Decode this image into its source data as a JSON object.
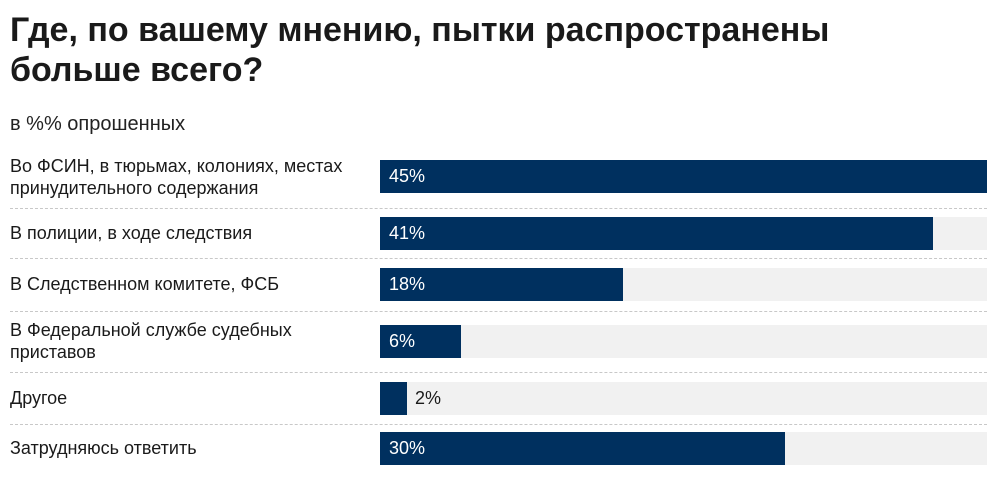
{
  "title": "Где, по вашему мнению, пытки распространены больше всего?",
  "subtitle": "в %% опрошенных",
  "colors": {
    "bar": "#00305f",
    "track": "#f1f1f1",
    "divider": "#c8c8c8"
  },
  "chart_data": {
    "type": "bar",
    "orientation": "horizontal",
    "title": "Где, по вашему мнению, пытки распространены больше всего?",
    "subtitle": "в %% опрошенных",
    "unit": "%",
    "xlim": [
      0,
      45
    ],
    "grid": false,
    "legend": "none",
    "categories": [
      "Во ФСИН, в тюрьмах, колониях, местах принудительного содержания",
      "В полиции, в ходе следствия",
      "В Следственном комитете, ФСБ",
      "В Федеральной службе судебных приставов",
      "Другое",
      "Затрудняюсь ответить"
    ],
    "values": [
      45,
      41,
      18,
      6,
      2,
      30
    ],
    "data_labels": [
      "45%",
      "41%",
      "18%",
      "6%",
      "2%",
      "30%"
    ]
  }
}
